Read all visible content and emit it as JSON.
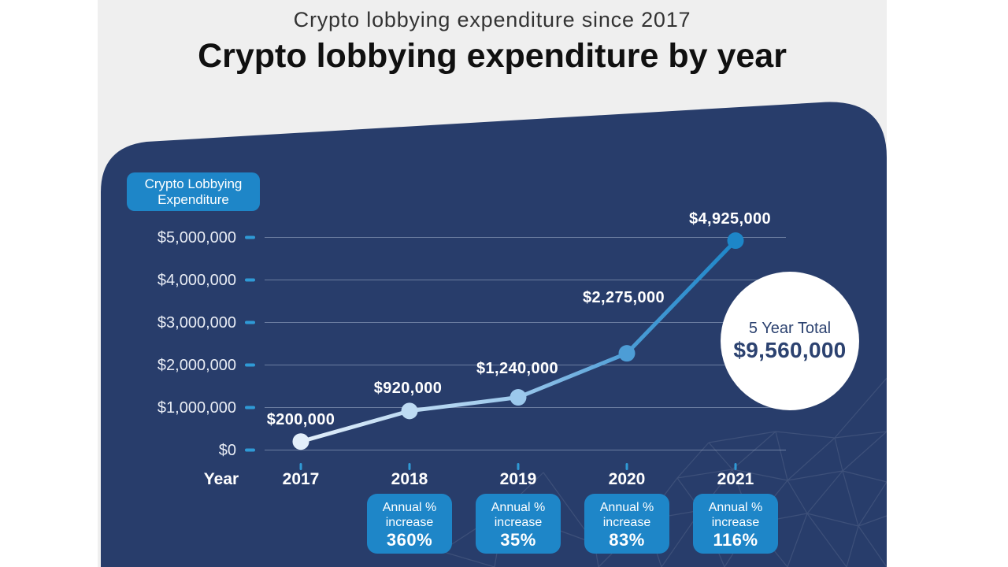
{
  "header": {
    "subtitle": "Crypto lobbying expenditure since 2017",
    "title": "Crypto lobbying expenditure by year"
  },
  "legend": {
    "line1": "Crypto Lobbying",
    "line2": "Expenditure"
  },
  "chart_data": {
    "type": "line",
    "title": "Crypto lobbying expenditure by year",
    "subtitle": "Crypto lobbying expenditure since 2017",
    "series_name": "Crypto Lobbying Expenditure",
    "x": [
      "2017",
      "2018",
      "2019",
      "2020",
      "2021"
    ],
    "values": [
      200000,
      920000,
      1240000,
      2275000,
      4925000
    ],
    "point_labels": [
      "$200,000",
      "$920,000",
      "$1,240,000",
      "$2,275,000",
      "$4,925,000"
    ],
    "xlabel": "Year",
    "ylabel": "",
    "ylim": [
      0,
      5000000
    ],
    "y_ticks": [
      "$5,000,000",
      "$4,000,000",
      "$3,000,000",
      "$2,000,000",
      "$1,000,000",
      "$0"
    ],
    "y_tick_values": [
      5000000,
      4000000,
      3000000,
      2000000,
      1000000,
      0
    ],
    "grid": true,
    "legend_position": "top-left",
    "total": {
      "label": "5 Year Total",
      "value": "$9,560,000"
    }
  },
  "increase_badges": [
    {
      "year": "2018",
      "line1": "Annual %",
      "line2": "increase",
      "value": "360%"
    },
    {
      "year": "2019",
      "line1": "Annual %",
      "line2": "increase",
      "value": "35%"
    },
    {
      "year": "2020",
      "line1": "Annual %",
      "line2": "increase",
      "value": "83%"
    },
    {
      "year": "2021",
      "line1": "Annual %",
      "line2": "increase",
      "value": "116%"
    }
  ],
  "colors": {
    "background": "#ffffff",
    "content_background": "#efefef",
    "panel_navy": "#283d6b",
    "accent_blue": "#1e86c8",
    "tick_blue": "#2f9ad6",
    "gridline": "#c9d6ea",
    "title_text": "#101010",
    "subtitle_text": "#333333",
    "light_text": "#e9edf5",
    "navy_text": "#2c4270",
    "line_gradient": [
      "#e3effa",
      "#bedbf3",
      "#9bc8ec",
      "#4d9dd6",
      "#1d86c8"
    ]
  }
}
